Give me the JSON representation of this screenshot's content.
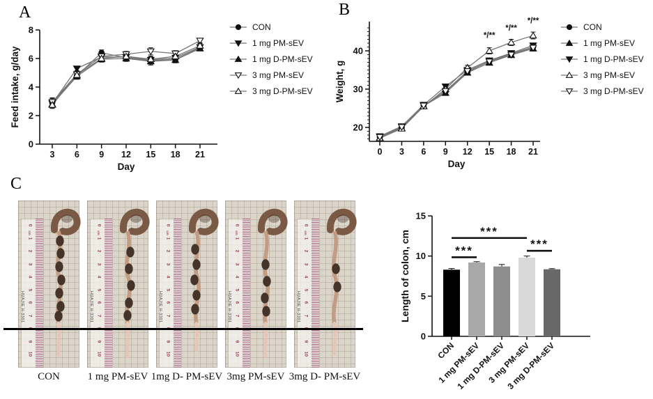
{
  "figure": {
    "panel_a_label": "A",
    "panel_b_label": "B",
    "panel_c_label": "C"
  },
  "chart_data": [
    {
      "panel": "A",
      "type": "line",
      "xlabel": "Day",
      "ylabel": "Feed intake, g/day",
      "x": [
        3,
        6,
        9,
        12,
        15,
        18,
        21
      ],
      "xlim": [
        1.5,
        22.5
      ],
      "ylim": [
        0,
        8
      ],
      "yticks": [
        0,
        2,
        4,
        6,
        8
      ],
      "legend_position": "right",
      "series": [
        {
          "name": "CON",
          "marker": "filled-circle",
          "values": [
            2.9,
            4.8,
            6.4,
            6.05,
            5.85,
            5.95,
            6.75
          ],
          "err": [
            0.3,
            0.25,
            0.2,
            0.25,
            0.3,
            0.25,
            0.15
          ]
        },
        {
          "name": "1 mg PM-sEV",
          "marker": "filled-triangle-down",
          "values": [
            2.85,
            5.3,
            6.1,
            6.1,
            5.9,
            6.05,
            6.8
          ],
          "err": [
            0.25,
            0.15,
            0.2,
            0.2,
            0.2,
            0.2,
            0.15
          ]
        },
        {
          "name": "1 mg D-PM-sEV",
          "marker": "filled-triangle-up",
          "values": [
            2.8,
            4.75,
            5.95,
            6.0,
            5.8,
            5.9,
            6.7
          ],
          "err": [
            0.25,
            0.2,
            0.2,
            0.2,
            0.25,
            0.2,
            0.15
          ]
        },
        {
          "name": "3 mg PM-sEV",
          "marker": "open-triangle-down",
          "values": [
            2.95,
            4.9,
            6.15,
            6.3,
            6.5,
            6.35,
            7.25
          ],
          "err": [
            0.3,
            0.2,
            0.2,
            0.2,
            0.25,
            0.2,
            0.15
          ]
        },
        {
          "name": "3 mg D-PM-sEV",
          "marker": "open-triangle-up",
          "values": [
            2.75,
            4.85,
            6.0,
            6.15,
            5.95,
            6.15,
            6.9
          ],
          "err": [
            0.25,
            0.2,
            0.25,
            0.2,
            0.2,
            0.2,
            0.15
          ]
        }
      ],
      "annotations": []
    },
    {
      "panel": "B",
      "type": "line",
      "xlabel": "Day",
      "ylabel": "Weight, g",
      "x": [
        0,
        3,
        6,
        9,
        12,
        15,
        18,
        21
      ],
      "xlim": [
        -1.5,
        22.5
      ],
      "ylim": [
        16,
        47
      ],
      "yticks": [
        20,
        30,
        40
      ],
      "minor_ytick_step": 1,
      "legend_position": "right",
      "series": [
        {
          "name": "CON",
          "marker": "filled-circle",
          "values": [
            17.5,
            20.0,
            25.8,
            29.3,
            34.5,
            37.3,
            39.2,
            41.0
          ],
          "err": [
            0.4,
            0.4,
            0.4,
            0.5,
            0.5,
            0.6,
            0.6,
            0.6
          ]
        },
        {
          "name": "1 mg PM-sEV",
          "marker": "filled-triangle-up",
          "values": [
            17.3,
            19.8,
            25.6,
            29.0,
            34.3,
            36.9,
            38.9,
            40.6
          ],
          "err": [
            0.3,
            0.3,
            0.3,
            0.4,
            0.4,
            0.5,
            0.5,
            0.5
          ]
        },
        {
          "name": "1 mg D-PM-sEV",
          "marker": "filled-triangle-down",
          "values": [
            17.7,
            20.3,
            25.9,
            30.7,
            35.0,
            37.5,
            39.4,
            41.4
          ],
          "err": [
            0.3,
            0.3,
            0.3,
            0.4,
            0.4,
            0.5,
            0.5,
            0.5
          ]
        },
        {
          "name": "3 mg PM-sEV",
          "marker": "open-triangle-up",
          "values": [
            17.2,
            19.7,
            25.5,
            30.0,
            35.6,
            40.0,
            42.2,
            44.0
          ],
          "err": [
            0.3,
            0.3,
            0.4,
            0.5,
            0.6,
            0.8,
            0.8,
            0.9
          ]
        },
        {
          "name": "3 mg D-PM-sEV",
          "marker": "open-triangle-down",
          "values": [
            17.5,
            20.1,
            25.7,
            29.5,
            34.7,
            37.2,
            39.0,
            40.8
          ],
          "err": [
            0.3,
            0.3,
            0.3,
            0.4,
            0.4,
            0.5,
            0.5,
            0.5
          ]
        }
      ],
      "annotations": [
        {
          "x": 15,
          "y": 43.4,
          "text": "*/**"
        },
        {
          "x": 18,
          "y": 45.3,
          "text": "*/**"
        },
        {
          "x": 21,
          "y": 47.2,
          "text": "*/**"
        }
      ]
    },
    {
      "panel": "C",
      "type": "bar",
      "ylabel": "Length of colon, cm",
      "categories": [
        "CON",
        "1 mg PM-sEV",
        "1 mg D-PM-sEV",
        "3 mg PM-sEV",
        "3 mg D-PM-sEV"
      ],
      "values": [
        8.3,
        9.2,
        8.7,
        9.8,
        8.35
      ],
      "errors": [
        0.15,
        0.1,
        0.25,
        0.2,
        0.08
      ],
      "colors": [
        "#000000",
        "#a8a8a8",
        "#8d8d8d",
        "#d9d9d9",
        "#686868"
      ],
      "ylim": [
        0,
        15
      ],
      "yticks": [
        0,
        5,
        10,
        15
      ],
      "significance": [
        {
          "from": 0,
          "to": 1,
          "y": 9.85,
          "text": "***"
        },
        {
          "from": 0,
          "to": 3,
          "y": 12.25,
          "text": "***"
        },
        {
          "from": 3,
          "to": 4,
          "y": 10.65,
          "text": "***"
        }
      ]
    }
  ],
  "photos": {
    "labels": [
      "CON",
      "1 mg PM-sEV",
      "1mg D- PM-sEV",
      "3mg PM-sEV",
      "3mg D- PM-sEV"
    ],
    "ruler_numbers": [
      "0",
      "1",
      "2",
      "3",
      "4",
      "5",
      "6",
      "7",
      "8",
      "9",
      "10"
    ],
    "ruler_unit": "cm",
    "ruler_brand": "HUAJIE H-3301"
  }
}
